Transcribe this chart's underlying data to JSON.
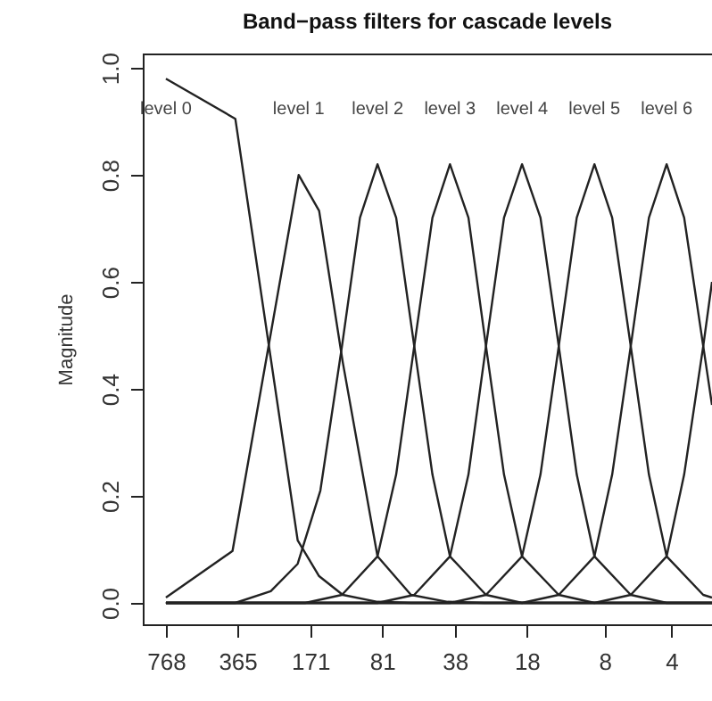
{
  "chart_data": {
    "type": "line",
    "title": "Band−pass filters for cascade levels",
    "ylabel": "Magnitude",
    "log": "x",
    "xlim": [
      977,
      2.62
    ],
    "ylim": [
      -0.04,
      1.027
    ],
    "xticks": [
      768,
      365,
      171,
      81,
      38,
      18,
      8,
      4
    ],
    "yticks": [
      {
        "value": 0,
        "label": "0.0"
      },
      0.2,
      0.4,
      0.6,
      0.8,
      {
        "value": 1,
        "label": "1.0"
      }
    ],
    "grid": false,
    "series": [
      {
        "color": "#222222",
        "x": [
          768,
          373,
          195,
          156,
          122,
          85,
          60,
          38,
          2.62
        ],
        "values": [
          0.98,
          0.905,
          0.117,
          0.05,
          0.015,
          0.002,
          0,
          0,
          0
        ]
      },
      {
        "color": "#222222",
        "x": [
          768,
          384,
          193,
          156,
          122,
          85,
          60,
          41,
          28,
          2.62
        ],
        "values": [
          0.01,
          0.097,
          0.8,
          0.733,
          0.45,
          0.087,
          0.015,
          0.002,
          0,
          0
        ]
      },
      {
        "color": "#222222",
        "x": [
          768,
          373,
          258,
          195,
          154,
          123,
          102,
          85,
          70,
          58,
          48,
          40,
          27.5,
          18.9,
          2.62
        ],
        "values": [
          0,
          0,
          0.022,
          0.073,
          0.21,
          0.48,
          0.72,
          0.82,
          0.72,
          0.48,
          0.24,
          0.087,
          0.015,
          0,
          0
        ]
      },
      {
        "color": "#222222",
        "x": [
          768,
          180,
          123,
          85,
          70,
          58,
          48,
          40,
          33,
          27.5,
          22.8,
          18.9,
          12.9,
          8.9,
          2.62
        ],
        "values": [
          0,
          0,
          0.015,
          0.087,
          0.24,
          0.48,
          0.72,
          0.82,
          0.72,
          0.48,
          0.24,
          0.087,
          0.015,
          0,
          0
        ]
      },
      {
        "color": "#222222",
        "x": [
          768,
          85,
          58,
          40,
          33,
          27.5,
          22.8,
          18.9,
          15.6,
          12.9,
          10.7,
          8.9,
          6.1,
          4.2,
          2.62
        ],
        "values": [
          0,
          0,
          0.015,
          0.087,
          0.24,
          0.48,
          0.72,
          0.82,
          0.72,
          0.48,
          0.24,
          0.087,
          0.015,
          0,
          0
        ]
      },
      {
        "color": "#222222",
        "x": [
          768,
          40,
          27.5,
          18.9,
          15.6,
          12.9,
          10.7,
          8.9,
          7.4,
          6.1,
          5.05,
          4.2,
          2.87,
          2.62
        ],
        "values": [
          0,
          0,
          0.015,
          0.087,
          0.24,
          0.48,
          0.72,
          0.82,
          0.72,
          0.48,
          0.24,
          0.087,
          0.015,
          0.01
        ]
      },
      {
        "color": "#222222",
        "x": [
          768,
          18.9,
          12.9,
          8.9,
          7.4,
          6.1,
          5.05,
          4.2,
          3.5,
          2.87,
          2.62
        ],
        "values": [
          0,
          0,
          0.015,
          0.087,
          0.24,
          0.48,
          0.72,
          0.82,
          0.72,
          0.48,
          0.37
        ]
      },
      {
        "color": "#222222",
        "x": [
          768,
          8.9,
          6.1,
          4.2,
          3.5,
          2.87,
          2.62
        ],
        "values": [
          0,
          0,
          0.015,
          0.087,
          0.24,
          0.48,
          0.6
        ]
      }
    ],
    "annotations": [
      "level 0",
      "level 1",
      "level 2",
      "level 3",
      "level 4",
      "level 5",
      "level 6"
    ]
  }
}
